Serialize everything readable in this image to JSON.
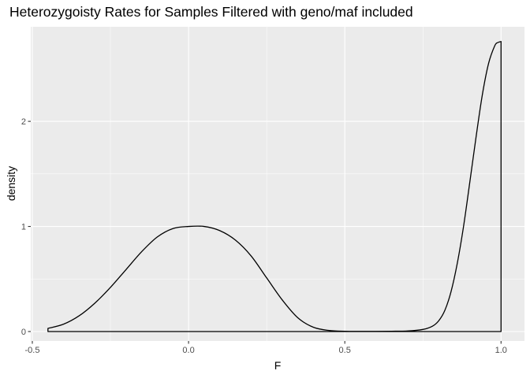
{
  "chart_data": {
    "type": "area",
    "title": "Heterozygoisty Rates for Samples Filtered with geno/maf included",
    "xlabel": "F",
    "ylabel": "density",
    "xlim": [
      -0.505,
      1.075
    ],
    "ylim": [
      -0.09,
      2.9
    ],
    "x_ticks": [
      -0.5,
      0.0,
      0.5,
      1.0
    ],
    "x_tick_labels": [
      "-0.5",
      "0.0",
      "0.5",
      "1.0"
    ],
    "y_ticks": [
      0,
      1,
      2
    ],
    "y_tick_labels": [
      "0",
      "1",
      "2"
    ],
    "grid": true,
    "legend": "none",
    "series": [
      {
        "x": [
          -0.45,
          -0.4,
          -0.35,
          -0.3,
          -0.25,
          -0.2,
          -0.15,
          -0.1,
          -0.05,
          0.0,
          0.05,
          0.1,
          0.15,
          0.2,
          0.25,
          0.3,
          0.35,
          0.4,
          0.45,
          0.5,
          0.55,
          0.6,
          0.65,
          0.7,
          0.75,
          0.78,
          0.8,
          0.82,
          0.84,
          0.86,
          0.88,
          0.9,
          0.92,
          0.94,
          0.96,
          0.98,
          0.99,
          1.0
        ],
        "values": [
          0.03,
          0.07,
          0.15,
          0.27,
          0.42,
          0.59,
          0.76,
          0.9,
          0.98,
          1.0,
          1.0,
          0.96,
          0.87,
          0.72,
          0.51,
          0.3,
          0.13,
          0.04,
          0.01,
          0.003,
          0.002,
          0.002,
          0.003,
          0.005,
          0.02,
          0.05,
          0.1,
          0.2,
          0.38,
          0.65,
          1.0,
          1.42,
          1.85,
          2.25,
          2.55,
          2.72,
          2.75,
          2.76
        ]
      }
    ]
  },
  "colors": {
    "panel_background": "#ebebeb",
    "grid_major": "#ffffff",
    "line": "#000000",
    "tick_label": "#4d4d4d"
  }
}
